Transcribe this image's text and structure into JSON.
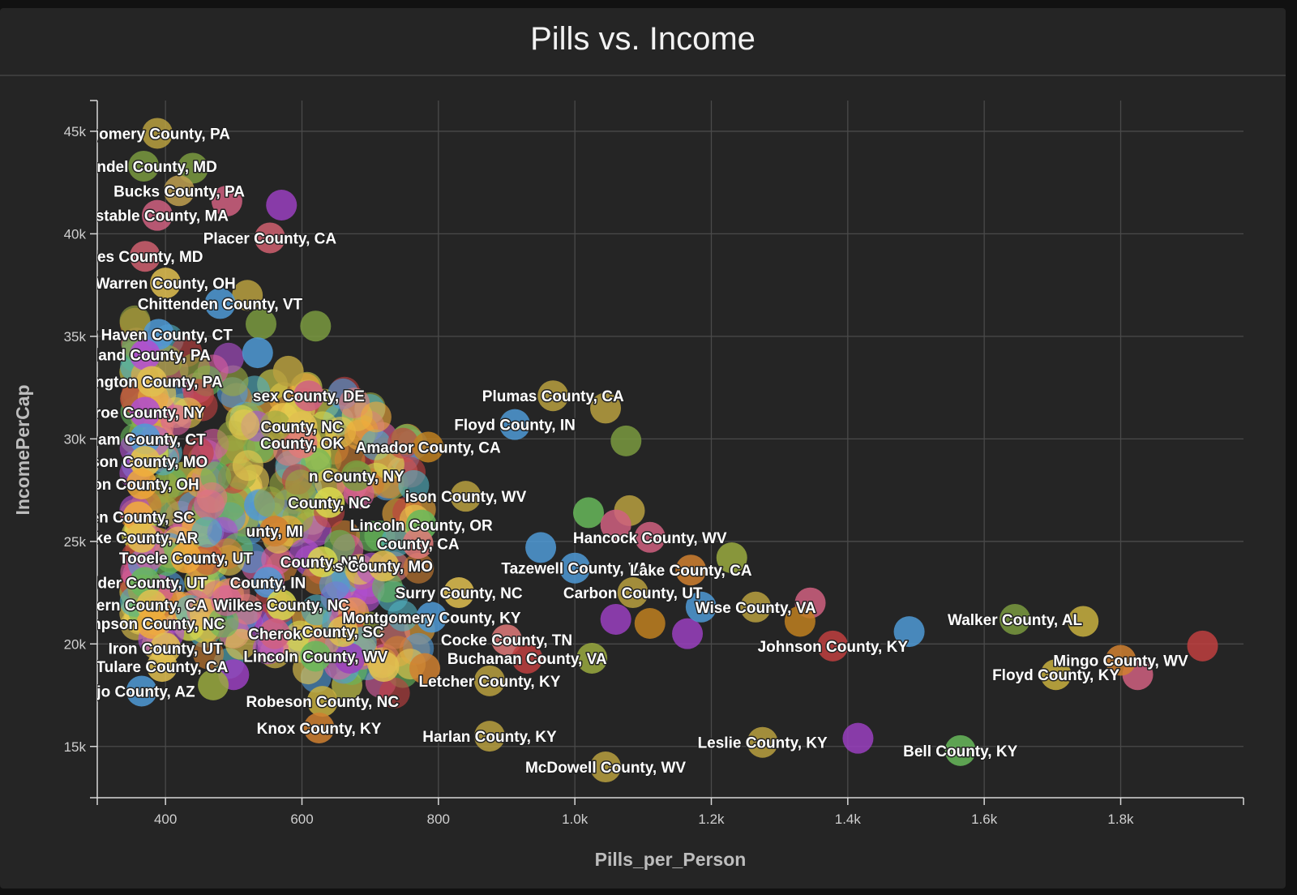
{
  "chart_data": {
    "type": "scatter",
    "title": "Pills vs. Income",
    "xlabel": "Pills_per_Person",
    "ylabel": "IncomePerCap",
    "xlim": [
      300,
      1980
    ],
    "ylim": [
      12500,
      46500
    ],
    "x_ticks": [
      400,
      600,
      800,
      1000,
      1200,
      1400,
      1600,
      1800
    ],
    "x_tick_labels": [
      "400",
      "600",
      "800",
      "1.0k",
      "1.2k",
      "1.4k",
      "1.6k",
      "1.8k"
    ],
    "y_ticks": [
      15000,
      20000,
      25000,
      30000,
      35000,
      40000,
      45000
    ],
    "y_tick_labels": [
      "15k",
      "20k",
      "25k",
      "30k",
      "35k",
      "40k",
      "45k"
    ],
    "grid": true,
    "legend": "none",
    "palette": [
      "#e8c94f",
      "#f0a93a",
      "#d9d94e",
      "#e07a7a",
      "#d95fa0",
      "#b04fd1",
      "#4f9ad6",
      "#67b85a",
      "#c04040",
      "#d08030",
      "#9aaa40",
      "#50b0c0"
    ],
    "labeled_points": [
      {
        "label": "tgomery County, PA",
        "x": 388,
        "y": 44900,
        "color": "#b8a040"
      },
      {
        "label": "Arundel County, MD",
        "x": 368,
        "y": 43300,
        "color": "#7a9a40"
      },
      {
        "label": "Bucks County, PA",
        "x": 420,
        "y": 42100,
        "color": "#c0a050"
      },
      {
        "label": "nstable County, MA",
        "x": 388,
        "y": 40900,
        "color": "#d06080"
      },
      {
        "label": "Placer County, CA",
        "x": 553,
        "y": 39800,
        "color": "#d06070"
      },
      {
        "label": "rles County, MD",
        "x": 370,
        "y": 38900,
        "color": "#d06070"
      },
      {
        "label": "Warren County, OH",
        "x": 400,
        "y": 37600,
        "color": "#e0c050"
      },
      {
        "label": "Chittenden County, VT",
        "x": 480,
        "y": 36600,
        "color": "#4f9ad6"
      },
      {
        "label": "w Haven County, CT",
        "x": 390,
        "y": 35100,
        "color": "#4f9ad6"
      },
      {
        "label": "erland County, PA",
        "x": 370,
        "y": 34100,
        "color": "#b04fd1"
      },
      {
        "label": "hington County, PA",
        "x": 380,
        "y": 32800,
        "color": "#e0c050"
      },
      {
        "label": "sex County, DE",
        "x": 610,
        "y": 32100,
        "color": "#d06080"
      },
      {
        "label": "nroe County, NY",
        "x": 370,
        "y": 31300,
        "color": "#b04fd1"
      },
      {
        "label": "Plumas County, CA",
        "x": 968,
        "y": 32100,
        "color": "#b8a040"
      },
      {
        "label": "Floyd County, IN",
        "x": 912,
        "y": 30700,
        "color": "#4f9ad6"
      },
      {
        "label": "County, NC",
        "x": 600,
        "y": 30600,
        "color": "#e0c050"
      },
      {
        "label": "lham County, CT",
        "x": 370,
        "y": 30000,
        "color": "#4f9ad6"
      },
      {
        "label": "County, OK",
        "x": 600,
        "y": 29800,
        "color": "#e07a7a"
      },
      {
        "label": "Amador County, CA",
        "x": 785,
        "y": 29600,
        "color": "#c08020"
      },
      {
        "label": "kson County, MO",
        "x": 370,
        "y": 28900,
        "color": "#e0c050"
      },
      {
        "label": "n County, NY",
        "x": 680,
        "y": 28200,
        "color": "#7a9a40"
      },
      {
        "label": "son County, OH",
        "x": 365,
        "y": 27800,
        "color": "#f0a93a"
      },
      {
        "label": "ison County, WV",
        "x": 840,
        "y": 27200,
        "color": "#b8a040"
      },
      {
        "label": "County, NC",
        "x": 640,
        "y": 26900,
        "color": "#d9d94e"
      },
      {
        "label": "ken County, SC",
        "x": 360,
        "y": 26200,
        "color": "#f0a93a"
      },
      {
        "label": "Lincoln County, OR",
        "x": 775,
        "y": 25800,
        "color": "#67b85a"
      },
      {
        "label": "unty, MI",
        "x": 560,
        "y": 25500,
        "color": "#d08030"
      },
      {
        "label": "oke County, AR",
        "x": 365,
        "y": 25200,
        "color": "#e0c050"
      },
      {
        "label": "Hancock County, WV",
        "x": 1110,
        "y": 25200,
        "color": "#d06080"
      },
      {
        "label": "County, CA",
        "x": 770,
        "y": 24900,
        "color": "#e07a7a"
      },
      {
        "label": "Tazewell County, VA",
        "x": 1000,
        "y": 23700,
        "color": "#4f9ad6"
      },
      {
        "label": "Tooele County, UT",
        "x": 430,
        "y": 24200,
        "color": "#f0a93a"
      },
      {
        "label": "County, NM",
        "x": 630,
        "y": 24000,
        "color": "#d9d94e"
      },
      {
        "label": "s County, MO",
        "x": 720,
        "y": 23800,
        "color": "#e0c050"
      },
      {
        "label": "Lake County, CA",
        "x": 1170,
        "y": 23600,
        "color": "#d08030"
      },
      {
        "label": "Elder County, UT",
        "x": 370,
        "y": 23000,
        "color": "#67b85a"
      },
      {
        "label": "County, IN",
        "x": 550,
        "y": 23000,
        "color": "#4f9ad6"
      },
      {
        "label": "Surry County, NC",
        "x": 830,
        "y": 22500,
        "color": "#e0c050"
      },
      {
        "label": "Carbon County, UT",
        "x": 1085,
        "y": 22500,
        "color": "#b8a040"
      },
      {
        "label": "ern County, CA",
        "x": 380,
        "y": 21900,
        "color": "#e0c050"
      },
      {
        "label": "Wilkes County, NC",
        "x": 570,
        "y": 21900,
        "color": "#d9d94e"
      },
      {
        "label": "Wise County, VA",
        "x": 1265,
        "y": 21800,
        "color": "#b8a040"
      },
      {
        "label": "Montgomery County, KY",
        "x": 790,
        "y": 21300,
        "color": "#4f9ad6"
      },
      {
        "label": "ampson County, NC",
        "x": 380,
        "y": 21000,
        "color": "#f0a93a"
      },
      {
        "label": "Walker County, AL",
        "x": 1645,
        "y": 21200,
        "color": "#7a9a40"
      },
      {
        "label": "Cherok",
        "x": 560,
        "y": 20500,
        "color": "#d06080"
      },
      {
        "label": "County, SC",
        "x": 660,
        "y": 20600,
        "color": "#e0c050"
      },
      {
        "label": "Cocke County, TN",
        "x": 900,
        "y": 20200,
        "color": "#e07a7a"
      },
      {
        "label": "Johnson County, KY",
        "x": 1378,
        "y": 19900,
        "color": "#c04040"
      },
      {
        "label": "Iron County, UT",
        "x": 400,
        "y": 19800,
        "color": "#e0c050"
      },
      {
        "label": "Lincoln County, WV",
        "x": 620,
        "y": 19400,
        "color": "#67b85a"
      },
      {
        "label": "Buchanan County, VA",
        "x": 930,
        "y": 19300,
        "color": "#c04040"
      },
      {
        "label": "Mingo County, WV",
        "x": 1800,
        "y": 19200,
        "color": "#d08030"
      },
      {
        "label": "Tulare County, CA",
        "x": 395,
        "y": 18900,
        "color": "#e0c050"
      },
      {
        "label": "Floyd County, KY",
        "x": 1705,
        "y": 18500,
        "color": "#c8b040"
      },
      {
        "label": "ajo County, AZ",
        "x": 365,
        "y": 17700,
        "color": "#4f9ad6"
      },
      {
        "label": "Letcher County, KY",
        "x": 875,
        "y": 18200,
        "color": "#b8a040"
      },
      {
        "label": "Robeson County, NC",
        "x": 630,
        "y": 17200,
        "color": "#c8b040"
      },
      {
        "label": "Knox County, KY",
        "x": 625,
        "y": 15900,
        "color": "#d08030"
      },
      {
        "label": "Harlan County, KY",
        "x": 875,
        "y": 15500,
        "color": "#b8a040"
      },
      {
        "label": "Leslie County, KY",
        "x": 1275,
        "y": 15200,
        "color": "#b8a040"
      },
      {
        "label": "Bell County, KY",
        "x": 1565,
        "y": 14800,
        "color": "#67b85a"
      },
      {
        "label": "McDowell County, WV",
        "x": 1045,
        "y": 14000,
        "color": "#b8a040"
      }
    ],
    "unlabeled_points": [
      {
        "x": 570,
        "y": 41400,
        "color": "#9a40c0"
      },
      {
        "x": 440,
        "y": 43200,
        "color": "#7a9a40"
      },
      {
        "x": 490,
        "y": 41600,
        "color": "#d06080"
      },
      {
        "x": 620,
        "y": 35500,
        "color": "#7a9a40"
      },
      {
        "x": 540,
        "y": 35600,
        "color": "#7a9a40"
      },
      {
        "x": 535,
        "y": 34200,
        "color": "#4f9ad6"
      },
      {
        "x": 580,
        "y": 33300,
        "color": "#b8a040"
      },
      {
        "x": 520,
        "y": 37000,
        "color": "#b8a040"
      },
      {
        "x": 1045,
        "y": 31500,
        "color": "#b8a040"
      },
      {
        "x": 1075,
        "y": 29900,
        "color": "#7a9a40"
      },
      {
        "x": 1080,
        "y": 26500,
        "color": "#b8a040"
      },
      {
        "x": 1020,
        "y": 26400,
        "color": "#67b85a"
      },
      {
        "x": 1060,
        "y": 25800,
        "color": "#d06080"
      },
      {
        "x": 1230,
        "y": 24200,
        "color": "#9aaa40"
      },
      {
        "x": 1110,
        "y": 21000,
        "color": "#c08020"
      },
      {
        "x": 1165,
        "y": 20500,
        "color": "#9a40c0"
      },
      {
        "x": 1185,
        "y": 21800,
        "color": "#4f9ad6"
      },
      {
        "x": 1345,
        "y": 22000,
        "color": "#d06080"
      },
      {
        "x": 1330,
        "y": 21100,
        "color": "#c08020"
      },
      {
        "x": 1490,
        "y": 20600,
        "color": "#4f9ad6"
      },
      {
        "x": 1745,
        "y": 21100,
        "color": "#c8b040"
      },
      {
        "x": 1920,
        "y": 19900,
        "color": "#c04040"
      },
      {
        "x": 1825,
        "y": 18500,
        "color": "#d06080"
      },
      {
        "x": 1415,
        "y": 15400,
        "color": "#9a40c0"
      },
      {
        "x": 1060,
        "y": 21200,
        "color": "#9a40c0"
      },
      {
        "x": 1025,
        "y": 19300,
        "color": "#9aaa40"
      },
      {
        "x": 950,
        "y": 24700,
        "color": "#4f9ad6"
      },
      {
        "x": 500,
        "y": 18500,
        "color": "#9a40c0"
      },
      {
        "x": 470,
        "y": 18000,
        "color": "#9aaa40"
      },
      {
        "x": 670,
        "y": 19300,
        "color": "#9a40c0"
      },
      {
        "x": 720,
        "y": 18900,
        "color": "#e0c050"
      },
      {
        "x": 780,
        "y": 18800,
        "color": "#d08030"
      }
    ]
  }
}
